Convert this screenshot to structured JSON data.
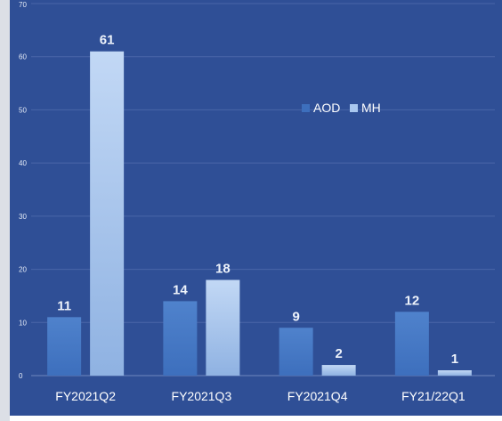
{
  "colors": {
    "background": "#2f4f96",
    "frame": "#dcdfe6",
    "aod": "#3d6fbd",
    "mh": "#a9c7ef",
    "gridline": "#4a66a8"
  },
  "chart_data": {
    "type": "bar",
    "title": "",
    "xlabel": "",
    "ylabel": "",
    "categories": [
      "FY2021Q2",
      "FY2021Q3",
      "FY2021Q4",
      "FY21/22Q1"
    ],
    "series": [
      {
        "name": "AOD",
        "values": [
          11,
          14,
          9,
          12
        ]
      },
      {
        "name": "MH",
        "values": [
          61,
          18,
          2,
          1
        ]
      }
    ],
    "ylim": [
      0,
      70
    ],
    "yticks": [
      "0",
      "10",
      "20",
      "30",
      "40",
      "50",
      "60",
      "70"
    ],
    "grid": true,
    "legend_position": "top-right"
  }
}
